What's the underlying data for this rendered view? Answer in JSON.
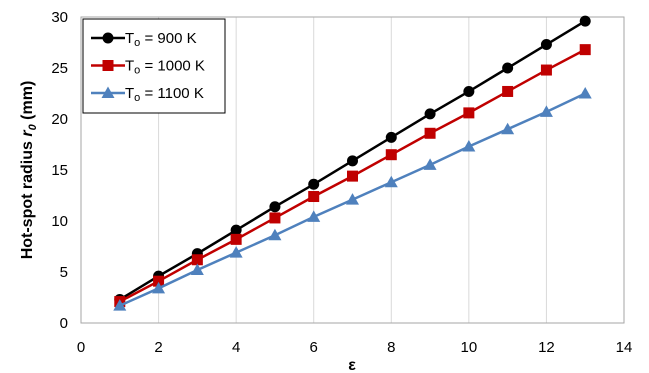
{
  "chart_data": {
    "type": "line",
    "title": "",
    "xlabel": "ε",
    "ylabel_main": "Hot-spot radius ",
    "ylabel_symbol": "r",
    "ylabel_sub": "0",
    "ylabel_unit": " (mm)",
    "xlim": [
      0,
      14
    ],
    "ylim": [
      0,
      30
    ],
    "xticks": [
      0,
      2,
      4,
      6,
      8,
      10,
      12,
      14
    ],
    "yticks": [
      0,
      5,
      10,
      15,
      20,
      25,
      30
    ],
    "grid": "vertical",
    "legend_position": "top-left",
    "x": [
      1,
      2,
      3,
      4,
      5,
      6,
      7,
      8,
      9,
      10,
      11,
      12,
      13
    ],
    "series": [
      {
        "name_main": "T",
        "name_sub": "o",
        "name_rest": " = 900 K",
        "color": "#000000",
        "marker": "circle",
        "values": [
          2.3,
          4.6,
          6.8,
          9.1,
          11.4,
          13.6,
          15.9,
          18.2,
          20.5,
          22.7,
          25.0,
          27.3,
          29.6
        ]
      },
      {
        "name_main": "T",
        "name_sub": "o",
        "name_rest": " = 1000 K",
        "color": "#c00000",
        "marker": "square",
        "values": [
          2.1,
          4.1,
          6.2,
          8.2,
          10.3,
          12.4,
          14.4,
          16.5,
          18.6,
          20.6,
          22.7,
          24.8,
          26.8
        ]
      },
      {
        "name_main": "T",
        "name_sub": "o",
        "name_rest": " = 1100 K",
        "color": "#4f81bd",
        "marker": "triangle",
        "values": [
          1.7,
          3.4,
          5.2,
          6.9,
          8.6,
          10.4,
          12.1,
          13.8,
          15.5,
          17.3,
          19.0,
          20.7,
          22.5
        ]
      }
    ]
  }
}
